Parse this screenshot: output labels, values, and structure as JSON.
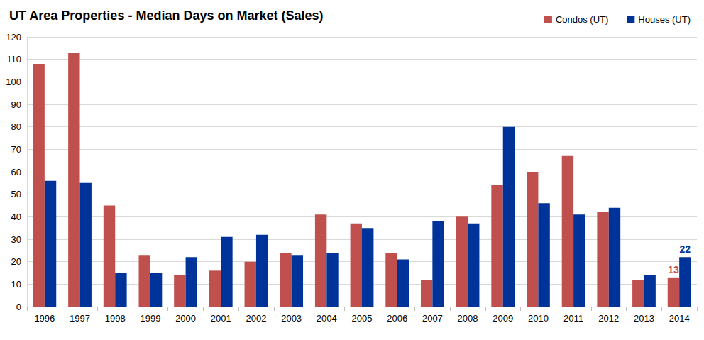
{
  "chart_data": {
    "type": "bar",
    "title": "UT Area Properties - Median Days on Market (Sales)",
    "categories": [
      "1996",
      "1997",
      "1998",
      "1999",
      "2000",
      "2001",
      "2002",
      "2003",
      "2004",
      "2005",
      "2006",
      "2007",
      "2008",
      "2009",
      "2010",
      "2011",
      "2012",
      "2013",
      "2014"
    ],
    "series": [
      {
        "name": "Condos (UT)",
        "color": "#c0504d",
        "values": [
          108,
          113,
          45,
          23,
          14,
          16,
          20,
          24,
          41,
          37,
          24,
          12,
          40,
          54,
          60,
          67,
          42,
          12,
          13
        ]
      },
      {
        "name": "Houses (UT)",
        "color": "#003399",
        "values": [
          56,
          55,
          15,
          15,
          22,
          31,
          32,
          23,
          24,
          35,
          21,
          38,
          37,
          80,
          46,
          41,
          44,
          14,
          22
        ]
      }
    ],
    "annotations": [
      {
        "category": "2014",
        "series": "Condos (UT)",
        "text": "13"
      },
      {
        "category": "2014",
        "series": "Houses (UT)",
        "text": "22"
      }
    ],
    "ylim": [
      0,
      120
    ],
    "yticks": [
      0,
      10,
      20,
      30,
      40,
      50,
      60,
      70,
      80,
      90,
      100,
      110,
      120
    ],
    "grid": true,
    "legend": "top-right"
  }
}
